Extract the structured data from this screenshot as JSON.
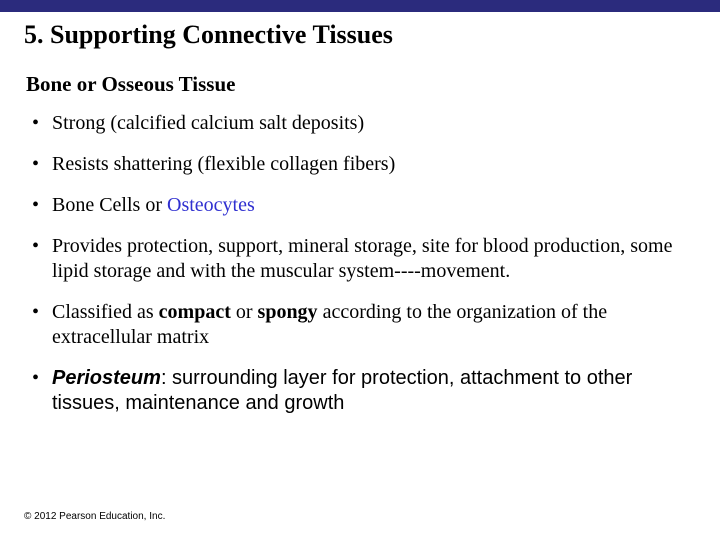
{
  "colors": {
    "top_bar": "#2b2b7d",
    "background": "#ffffff",
    "text": "#000000",
    "highlight": "#2f2fd0"
  },
  "title": "5.  Supporting Connective Tissues",
  "subtitle": "Bone or Osseous Tissue",
  "bullets": {
    "b1": "Strong (calcified calcium salt deposits)",
    "b2": "Resists shattering (flexible collagen fibers)",
    "b3_prefix": "Bone Cells or ",
    "b3_highlight": "Osteocytes",
    "b4": "Provides protection, support, mineral storage, site for blood production, some lipid storage and with the muscular system----movement.",
    "b5_prefix": "Classified as ",
    "b5_bold1": "compact",
    "b5_mid": " or ",
    "b5_bold2": "spongy",
    "b5_suffix": " according to the organization of the extracellular matrix",
    "b6_term": "Periosteum",
    "b6_rest": ": surrounding layer for protection, attachment to other tissues, maintenance and growth"
  },
  "copyright": "© 2012 Pearson Education, Inc."
}
